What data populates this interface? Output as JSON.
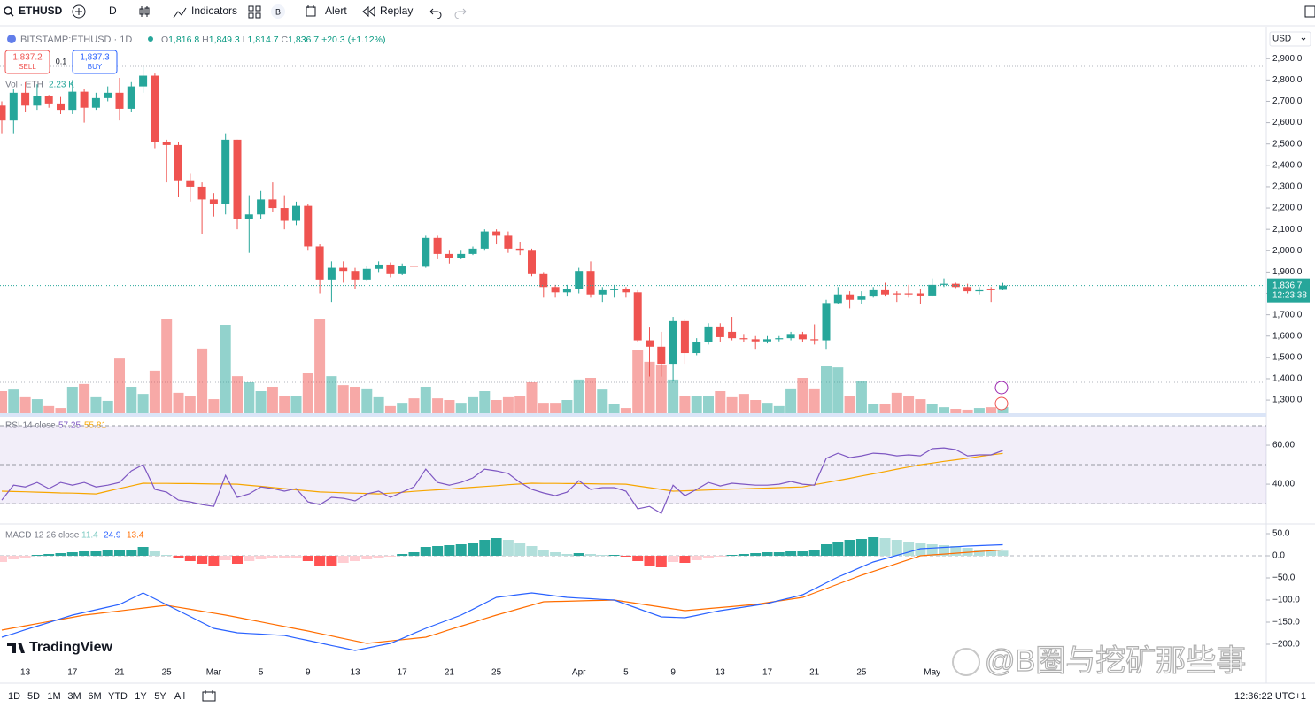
{
  "toolbar": {
    "symbol": "ETHUSD",
    "interval": "D",
    "indicators": "Indicators",
    "badge": "B",
    "alert": "Alert",
    "replay": "Replay"
  },
  "chart_data": {
    "type": "candlestick",
    "symbol_title": "BITSTAMP:ETHUSD · 1D",
    "legend": {
      "o": "O",
      "open": "1,816.8",
      "h": "H",
      "high": "1,849.3",
      "l": "L",
      "low": "1,814.7",
      "c": "C",
      "close": "1,836.7",
      "change": "+20.3 (+1.12%)"
    },
    "sell_price": "1,837.2",
    "sell": "SELL",
    "spread": "0.1",
    "buy_price": "1,837.3",
    "buy": "BUY",
    "currency": "USD",
    "grid": false,
    "categories": [
      null,
      null,
      "13",
      null,
      null,
      null,
      "17",
      null,
      null,
      null,
      "21",
      null,
      null,
      null,
      "25",
      null,
      null,
      null,
      "Mar",
      null,
      null,
      null,
      "5",
      null,
      null,
      null,
      "9",
      null,
      null,
      null,
      "13",
      null,
      null,
      null,
      "17",
      null,
      null,
      null,
      "21",
      null,
      null,
      null,
      "25",
      null,
      null,
      null,
      null,
      null,
      null,
      "Apr",
      null,
      null,
      null,
      "5",
      null,
      null,
      null,
      "9",
      null,
      null,
      null,
      "13",
      null,
      null,
      null,
      "17",
      null,
      null,
      null,
      "21",
      null,
      null,
      null,
      "25",
      null,
      null,
      null,
      null,
      null,
      "May",
      null,
      null,
      null,
      null,
      null,
      null
    ],
    "open": [
      2680,
      2610,
      2740,
      2680,
      2725,
      2690,
      2660,
      2745,
      2670,
      2715,
      2740,
      2665,
      2770,
      2820,
      2510,
      2495,
      2330,
      2300,
      2240,
      2220,
      2520,
      2150,
      2170,
      2240,
      2200,
      2140,
      2210,
      2020,
      1865,
      1920,
      1905,
      1865,
      1915,
      1935,
      1890,
      1930,
      1925,
      2060,
      1985,
      1965,
      1985,
      2010,
      2090,
      2070,
      2010,
      2000,
      1890,
      1830,
      1805,
      1820,
      1905,
      1795,
      1815,
      1820,
      1805,
      1580,
      1550,
      1470,
      1670,
      1520,
      1570,
      1645,
      1620,
      1590,
      1585,
      1575,
      1585,
      1590,
      1610,
      1585,
      1580,
      1755,
      1795,
      1770,
      1785,
      1815,
      1800,
      1800,
      1800,
      1790,
      1840,
      1845,
      1830,
      1810,
      1820,
      1816.8
    ],
    "high": [
      2700,
      2760,
      2790,
      2780,
      2730,
      2720,
      2800,
      2760,
      2740,
      2770,
      2810,
      2790,
      2860,
      2830,
      2520,
      2510,
      2360,
      2320,
      2270,
      2550,
      2520,
      2260,
      2280,
      2320,
      2260,
      2230,
      2220,
      2030,
      1950,
      1950,
      1920,
      1930,
      1950,
      1945,
      1940,
      1940,
      2070,
      2070,
      2000,
      2000,
      2020,
      2100,
      2100,
      2090,
      2040,
      2010,
      1900,
      1840,
      1840,
      1920,
      1950,
      1830,
      1840,
      1830,
      1815,
      1640,
      1620,
      1690,
      1680,
      1590,
      1660,
      1660,
      1690,
      1610,
      1600,
      1600,
      1600,
      1620,
      1620,
      1655,
      1770,
      1830,
      1810,
      1810,
      1830,
      1850,
      1810,
      1840,
      1820,
      1870,
      1870,
      1850,
      1845,
      1830,
      1830,
      1849.3
    ],
    "low": [
      2550,
      2550,
      2650,
      2660,
      2670,
      2640,
      2640,
      2600,
      2660,
      2700,
      2610,
      2650,
      2740,
      2480,
      2320,
      2250,
      2230,
      2080,
      2160,
      2170,
      2100,
      1990,
      2150,
      2180,
      2100,
      2120,
      2000,
      1800,
      1760,
      1850,
      1820,
      1860,
      1900,
      1875,
      1885,
      1890,
      1920,
      1960,
      1940,
      1960,
      1980,
      2000,
      2030,
      1990,
      1980,
      1880,
      1780,
      1780,
      1785,
      1800,
      1780,
      1760,
      1780,
      1780,
      1570,
      1410,
      1410,
      1390,
      1470,
      1510,
      1560,
      1570,
      1580,
      1570,
      1540,
      1565,
      1575,
      1580,
      1570,
      1560,
      1540,
      1750,
      1730,
      1750,
      1780,
      1785,
      1760,
      1780,
      1750,
      1785,
      1830,
      1825,
      1800,
      1795,
      1760,
      1814.7
    ],
    "close": [
      2610,
      2740,
      2680,
      2725,
      2690,
      2660,
      2745,
      2670,
      2715,
      2740,
      2665,
      2770,
      2820,
      2510,
      2495,
      2330,
      2300,
      2240,
      2220,
      2520,
      2150,
      2170,
      2240,
      2200,
      2140,
      2210,
      2020,
      1865,
      1920,
      1905,
      1865,
      1915,
      1935,
      1890,
      1930,
      1925,
      2060,
      1985,
      1965,
      1985,
      2010,
      2090,
      2070,
      2010,
      2000,
      1890,
      1830,
      1805,
      1820,
      1905,
      1795,
      1815,
      1820,
      1805,
      1580,
      1550,
      1470,
      1670,
      1520,
      1570,
      1645,
      1595,
      1590,
      1585,
      1575,
      1585,
      1590,
      1610,
      1585,
      1580,
      1755,
      1795,
      1770,
      1785,
      1815,
      1795,
      1795,
      1795,
      1790,
      1840,
      1845,
      1830,
      1810,
      1815,
      1815,
      1836.7
    ],
    "up_color": "#26a69a",
    "down_color": "#ef5350",
    "ylim": [
      1234,
      3042
    ],
    "yticks": [
      {
        "value": 1300,
        "label": "1,300.0"
      },
      {
        "value": 1400,
        "label": "1,400.0"
      },
      {
        "value": 1500,
        "label": "1,500.0"
      },
      {
        "value": 1600,
        "label": "1,600.0"
      },
      {
        "value": 1700,
        "label": "1,700.0"
      },
      {
        "value": 1800,
        "label": "1,800.0"
      },
      {
        "value": 1900,
        "label": "1,900.0"
      },
      {
        "value": 2000,
        "label": "2,000.0"
      },
      {
        "value": 2100,
        "label": "2,100.0"
      },
      {
        "value": 2200,
        "label": "2,200.0"
      },
      {
        "value": 2300,
        "label": "2,300.0"
      },
      {
        "value": 2400,
        "label": "2,400.0"
      },
      {
        "value": 2500,
        "label": "2,500.0"
      },
      {
        "value": 2600,
        "label": "2,600.0"
      },
      {
        "value": 2700,
        "label": "2,700.0"
      },
      {
        "value": 2800,
        "label": "2,800.0"
      },
      {
        "value": 2900,
        "label": "2,900.0"
      }
    ],
    "last_price": {
      "value": 1836.7,
      "label": "1,836.7"
    },
    "countdown": "12:23:38",
    "volume": {
      "title": "Vol · ETH",
      "last_label": "2.23 K",
      "ylim": [
        0,
        40
      ],
      "up_color": "#26a69a80",
      "down_color": "#ef535080",
      "values": [
        8.0,
        8.6,
        5.8,
        5.1,
        2.6,
        1.9,
        9.6,
        10.6,
        5.8,
        4.5,
        19.8,
        9.6,
        7.0,
        15.4,
        34.2,
        7.4,
        6.4,
        23.4,
        5.1,
        32.0,
        13.4,
        11.2,
        8.0,
        9.6,
        6.4,
        6.4,
        14.4,
        34.2,
        13.4,
        10.2,
        9.6,
        9.0,
        5.8,
        2.6,
        3.8,
        5.4,
        9.6,
        5.4,
        4.8,
        3.8,
        5.8,
        8.0,
        4.8,
        5.8,
        6.4,
        11.2,
        3.8,
        3.8,
        4.8,
        12.2,
        12.8,
        8.6,
        3.2,
        1.9,
        23.0,
        18.6,
        17.6,
        12.2,
        6.4,
        6.4,
        6.4,
        8.0,
        5.8,
        7.0,
        4.8,
        3.8,
        2.6,
        9.0,
        12.8,
        9.0,
        17.0,
        16.6,
        6.4,
        11.8,
        3.2,
        3.2,
        7.4,
        6.4,
        5.1,
        3.2,
        2.2,
        1.6,
        1.3,
        1.9,
        2.2,
        2.23
      ]
    },
    "rsi": {
      "title": "RSI 14 close",
      "ylim": [
        20.5,
        74.1
      ],
      "levels": [
        30,
        50,
        70
      ],
      "band_color": "#7e57c21a",
      "yticks": [
        {
          "value": 60,
          "label": "60.00"
        },
        {
          "value": 40,
          "label": "40.00"
        }
      ],
      "color": "#7e57c2",
      "values": [
        31.8,
        39.5,
        38.6,
        40.9,
        37.7,
        40.9,
        39.5,
        40.9,
        38.6,
        39.5,
        40.9,
        46.8,
        50,
        37.3,
        35.9,
        31.8,
        30.9,
        29.5,
        28.6,
        44.5,
        33.2,
        35,
        38.6,
        37.7,
        36.4,
        37.7,
        30.9,
        29.5,
        33.2,
        32.7,
        31.4,
        35,
        36.4,
        33.2,
        35.9,
        38.6,
        47.7,
        40.9,
        39.5,
        40.9,
        43.2,
        47.7,
        46.8,
        45.5,
        40.9,
        37.3,
        35.5,
        34.1,
        35.9,
        41.8,
        37.3,
        38.2,
        38.2,
        36.4,
        27.3,
        28.6,
        25,
        39.5,
        34.1,
        37.3,
        40.9,
        39.1,
        40.5,
        40,
        39.5,
        39.5,
        40,
        41.4,
        40,
        39.5,
        53.2,
        55.9,
        53.6,
        54.5,
        55.9,
        55.5,
        54.5,
        55,
        54.5,
        58.2,
        58.6,
        57.7,
        54.5,
        55,
        55,
        57.25
      ],
      "ma": {
        "color": "#f7a600",
        "values": [
          36.4,
          36.2,
          36.1,
          35.9,
          35.7,
          35.5,
          35.4,
          35.2,
          35.0,
          36.4,
          37.8,
          39.1,
          40.5,
          40.4,
          40.4,
          40.3,
          40.3,
          40.2,
          40.1,
          40.1,
          40.0,
          39.4,
          38.9,
          38.3,
          37.7,
          37.1,
          36.6,
          36.0,
          35.8,
          35.6,
          35.4,
          35.2,
          35.0,
          35.4,
          35.8,
          36.3,
          36.7,
          37.1,
          37.5,
          38.0,
          38.4,
          38.8,
          39.2,
          39.7,
          40.1,
          40.5,
          40.4,
          40.4,
          40.3,
          40.3,
          40.2,
          40.1,
          40.1,
          40.0,
          39.1,
          38.2,
          37.3,
          36.4,
          36.6,
          36.8,
          37.0,
          37.2,
          37.4,
          37.6,
          37.8,
          38.0,
          38.2,
          38.4,
          38.6,
          39.7,
          40.8,
          41.9,
          43.0,
          44.2,
          45.3,
          46.5,
          47.7,
          48.8,
          50.0,
          50.8,
          51.7,
          52.5,
          53.3,
          54.2,
          55.0,
          55.81
        ]
      }
    },
    "macd": {
      "title": "MACD 12 26 close",
      "ylim": [
        -284,
        68
      ],
      "yticks": [
        {
          "value": 50,
          "label": "50.0"
        },
        {
          "value": 0,
          "label": "0.0"
        },
        {
          "value": -50,
          "label": "−50.0"
        },
        {
          "value": -100,
          "label": "−100.0"
        },
        {
          "value": -150,
          "label": "−150.0"
        },
        {
          "value": -200,
          "label": "−200.0"
        }
      ],
      "color": "#2962ff",
      "values": [
        -184,
        -175.7,
        -167.3,
        -159,
        -150.7,
        -142.3,
        -134,
        -128,
        -122,
        -116,
        -110,
        -97,
        -84,
        -97.3,
        -110.7,
        -124,
        -137.3,
        -150.7,
        -164,
        -169,
        -174,
        -175.5,
        -177,
        -178.5,
        -180,
        -185.7,
        -191.3,
        -197,
        -202.7,
        -208.3,
        -214,
        -208.7,
        -203.3,
        -198,
        -186.7,
        -175.3,
        -164,
        -154,
        -144,
        -134,
        -120.7,
        -107.3,
        -94,
        -90.7,
        -87.3,
        -84,
        -87.3,
        -90.7,
        -94,
        -95.5,
        -97,
        -98.5,
        -100,
        -109.5,
        -119,
        -128.5,
        -138,
        -139,
        -140,
        -134.7,
        -129.3,
        -124,
        -120,
        -116,
        -112,
        -108,
        -101.3,
        -94.7,
        -88,
        -74.7,
        -61.3,
        -48,
        -36.7,
        -25.3,
        -14,
        -6.5,
        1,
        8.5,
        16,
        17.5,
        19,
        20.5,
        22,
        23,
        24,
        24.9
      ],
      "signal": {
        "color": "#ff6d00",
        "values": [
          -168,
          -163.1,
          -158.3,
          -153.4,
          -148.6,
          -143.7,
          -138.9,
          -134,
          -130.9,
          -127.7,
          -124.6,
          -121.4,
          -118.3,
          -115.1,
          -112,
          -116.4,
          -120.8,
          -125.2,
          -129.6,
          -134,
          -139.1,
          -144.3,
          -149.4,
          -154.6,
          -159.7,
          -164.9,
          -170,
          -175.6,
          -181.2,
          -186.8,
          -192.4,
          -198,
          -195.2,
          -192.4,
          -189.6,
          -186.8,
          -184,
          -175.7,
          -167.3,
          -159,
          -150.7,
          -142.3,
          -134,
          -126.5,
          -119,
          -111.5,
          -104,
          -103.3,
          -102.7,
          -102,
          -101.3,
          -100.7,
          -100,
          -104,
          -108,
          -112,
          -116,
          -120,
          -124,
          -121.7,
          -119.3,
          -117,
          -114.7,
          -112.3,
          -110,
          -106,
          -102,
          -98,
          -94,
          -84,
          -74,
          -64,
          -54,
          -44,
          -35.2,
          -26.4,
          -17.6,
          -8.8,
          0,
          1.9,
          3.8,
          5.7,
          7.7,
          9.6,
          11.5,
          13.4
        ]
      },
      "histogram": {
        "colors": {
          "rise_pos": "#26a69a",
          "fall_pos": "#b2dfdb",
          "rise_neg": "#ffcdd2",
          "fall_neg": "#ff5252"
        },
        "values": [
          -14,
          -8,
          -4,
          2,
          4,
          6,
          8,
          10,
          10,
          12,
          14,
          14,
          20,
          10,
          2,
          -6,
          -12,
          -18,
          -24,
          -10,
          -18,
          -12,
          -8,
          -6,
          -4,
          -4,
          -12,
          -22,
          -24,
          -16,
          -12,
          -8,
          -4,
          -2,
          4,
          8,
          20,
          22,
          24,
          26,
          30,
          36,
          40,
          36,
          30,
          22,
          14,
          8,
          4,
          6,
          4,
          2,
          2,
          -2,
          -12,
          -22,
          -26,
          -14,
          -16,
          -10,
          -4,
          -2,
          2,
          4,
          6,
          8,
          8,
          10,
          10,
          12,
          26,
          32,
          36,
          38,
          42,
          40,
          36,
          32,
          28,
          26,
          24,
          22,
          18,
          14,
          12,
          11.4
        ]
      }
    }
  },
  "range_bar": {
    "ranges": [
      "1D",
      "5D",
      "1M",
      "3M",
      "6M",
      "YTD",
      "1Y",
      "5Y",
      "All"
    ],
    "clock": "12:36:22 UTC+1"
  },
  "watermarks": {
    "brand": "TradingView",
    "author": "@B圈与挖矿那些事"
  }
}
